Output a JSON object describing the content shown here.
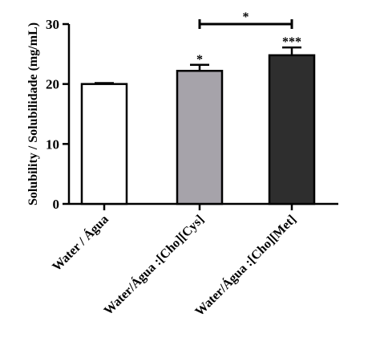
{
  "chart_data": {
    "type": "bar",
    "title": "",
    "xlabel": "",
    "ylabel": "Solubility / Solubilidade (mg/mL)",
    "ylim": [
      0,
      30
    ],
    "yticks": [
      "0",
      "10",
      "20",
      "30"
    ],
    "grid": false,
    "legend": "none",
    "categories": [
      "Water / Água",
      "Water/Água :[Cho][Cys]",
      "Water/Água :[Cho][Met]"
    ],
    "values": [
      20.0,
      22.2,
      24.8
    ],
    "errors": [
      0.15,
      1.0,
      1.3
    ],
    "bar_colors": [
      "#ffffff",
      "#a6a3aa",
      "#2e2e2e"
    ],
    "significance": [
      "",
      "*",
      "***"
    ],
    "comparison": {
      "from": 1,
      "to": 2,
      "label": "*"
    }
  }
}
